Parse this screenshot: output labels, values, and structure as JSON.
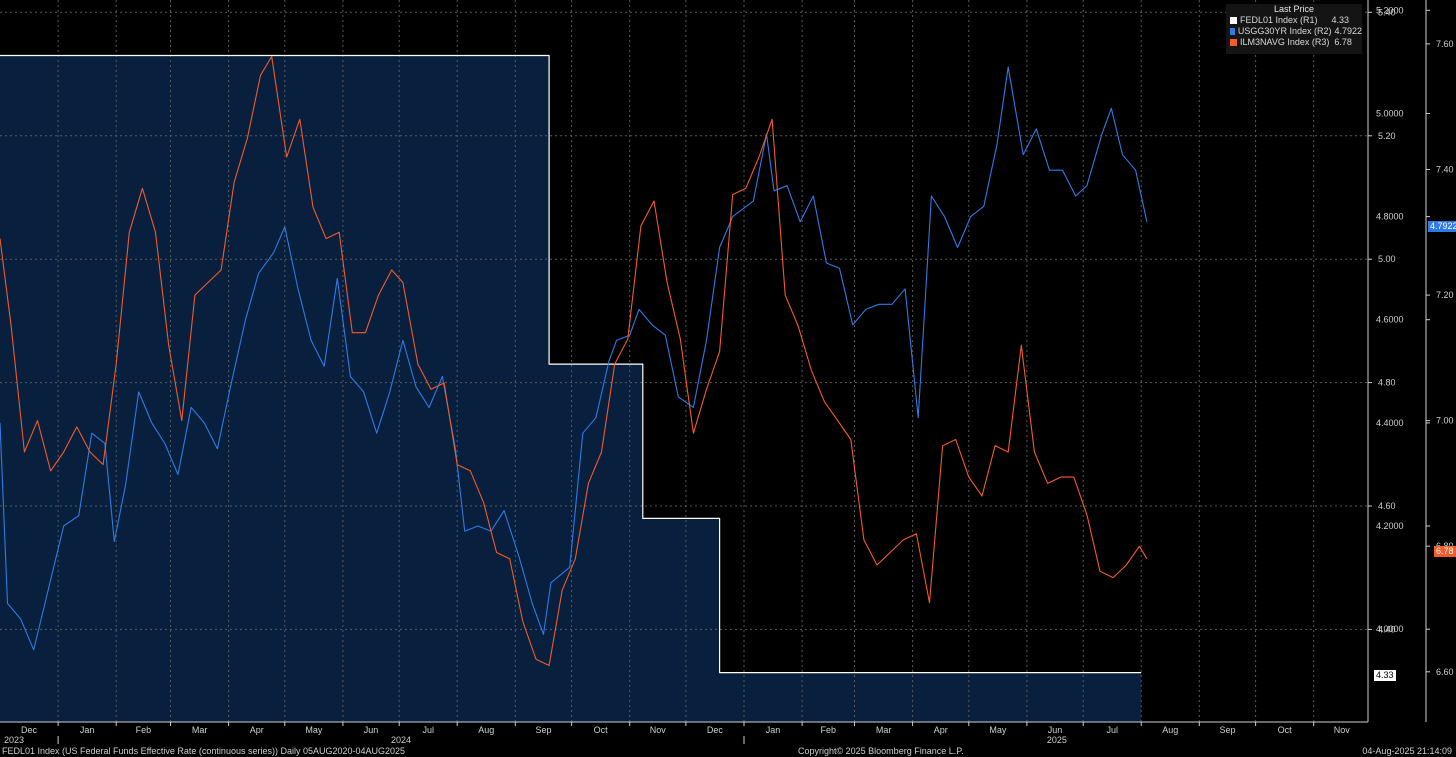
{
  "legend": {
    "header": "Last Price",
    "items": [
      {
        "label": "FEDL01 Index  (R1)",
        "value": "4.33",
        "color": "#ffffff"
      },
      {
        "label": "USGG30YR Index  (R2)",
        "value": "4.7922",
        "color": "#2f7ae5"
      },
      {
        "label": "ILM3NAVG Index  (R3)",
        "value": "6.78",
        "color": "#f25b2a"
      }
    ]
  },
  "footer": {
    "left": "FEDL01 Index (US Federal Funds Effective Rate (continuous series))  Daily 05AUG2020-04AUG2025",
    "center": "Copyright© 2025 Bloomberg Finance L.P.",
    "right": "04-Aug-2025 21:14:09"
  },
  "last_tags": {
    "usgg30yr": "4.7922",
    "ilm3navg": "6.78",
    "fedl01": "4.33"
  },
  "chart_data": {
    "type": "line",
    "x_axis": {
      "months": [
        "Dec",
        "Jan",
        "Feb",
        "Mar",
        "Apr",
        "May",
        "Jun",
        "Jul",
        "Aug",
        "Sep",
        "Oct",
        "Nov",
        "Dec",
        "Jan",
        "Feb",
        "Mar",
        "Apr",
        "May",
        "Jun",
        "Jul",
        "Aug",
        "Sep",
        "Oct",
        "Nov"
      ],
      "years": [
        "2023",
        "2024",
        "2025"
      ],
      "range": [
        "2023-12-01",
        "2025-11-30"
      ]
    },
    "axes": {
      "R1": {
        "ticks": [
          "4.40",
          "4.60",
          "4.80",
          "5.00",
          "5.20",
          "5.40"
        ],
        "range": [
          4.25,
          5.42
        ]
      },
      "R2": {
        "ticks": [
          "4.0000",
          "4.2000",
          "4.4000",
          "4.6000",
          "4.8000",
          "5.0000",
          "5.2000"
        ],
        "range": [
          3.82,
          5.22
        ]
      },
      "R3": {
        "ticks": [
          "6.60",
          "6.80",
          "7.00",
          "7.20",
          "7.40",
          "7.60"
        ],
        "range": [
          6.52,
          7.67
        ]
      }
    },
    "grid": true,
    "series": [
      {
        "name": "FEDL01 Index",
        "axis": "R1",
        "color": "#ffffff",
        "fill": "#08203d",
        "shape": "step",
        "points": [
          [
            "2023-12-01",
            5.33
          ],
          [
            "2024-09-19",
            5.33
          ],
          [
            "2024-09-19",
            4.83
          ],
          [
            "2024-11-08",
            4.83
          ],
          [
            "2024-11-08",
            4.58
          ],
          [
            "2024-12-19",
            4.58
          ],
          [
            "2024-12-19",
            4.33
          ],
          [
            "2025-08-01",
            4.33
          ]
        ]
      },
      {
        "name": "USGG30YR Index",
        "axis": "R2",
        "color": "#2f7ae5",
        "points": [
          [
            "2023-12-01",
            4.4
          ],
          [
            "2023-12-05",
            4.05
          ],
          [
            "2023-12-12",
            4.02
          ],
          [
            "2023-12-19",
            3.96
          ],
          [
            "2023-12-27",
            4.08
          ],
          [
            "2024-01-04",
            4.2
          ],
          [
            "2024-01-12",
            4.22
          ],
          [
            "2024-01-19",
            4.38
          ],
          [
            "2024-01-26",
            4.36
          ],
          [
            "2024-01-31",
            4.17
          ],
          [
            "2024-02-06",
            4.28
          ],
          [
            "2024-02-13",
            4.46
          ],
          [
            "2024-02-20",
            4.4
          ],
          [
            "2024-02-27",
            4.36
          ],
          [
            "2024-03-05",
            4.3
          ],
          [
            "2024-03-12",
            4.43
          ],
          [
            "2024-03-19",
            4.4
          ],
          [
            "2024-03-26",
            4.35
          ],
          [
            "2024-04-02",
            4.47
          ],
          [
            "2024-04-10",
            4.6
          ],
          [
            "2024-04-17",
            4.69
          ],
          [
            "2024-04-25",
            4.73
          ],
          [
            "2024-05-01",
            4.78
          ],
          [
            "2024-05-08",
            4.66
          ],
          [
            "2024-05-15",
            4.56
          ],
          [
            "2024-05-22",
            4.51
          ],
          [
            "2024-05-29",
            4.68
          ],
          [
            "2024-06-05",
            4.49
          ],
          [
            "2024-06-12",
            4.46
          ],
          [
            "2024-06-19",
            4.38
          ],
          [
            "2024-06-26",
            4.46
          ],
          [
            "2024-07-03",
            4.56
          ],
          [
            "2024-07-10",
            4.47
          ],
          [
            "2024-07-17",
            4.43
          ],
          [
            "2024-07-24",
            4.49
          ],
          [
            "2024-07-31",
            4.35
          ],
          [
            "2024-08-05",
            4.19
          ],
          [
            "2024-08-12",
            4.2
          ],
          [
            "2024-08-19",
            4.19
          ],
          [
            "2024-08-26",
            4.23
          ],
          [
            "2024-09-03",
            4.14
          ],
          [
            "2024-09-10",
            4.05
          ],
          [
            "2024-09-16",
            3.99
          ],
          [
            "2024-09-20",
            4.09
          ],
          [
            "2024-09-30",
            4.12
          ],
          [
            "2024-10-07",
            4.38
          ],
          [
            "2024-10-14",
            4.41
          ],
          [
            "2024-10-21",
            4.52
          ],
          [
            "2024-10-25",
            4.56
          ],
          [
            "2024-11-01",
            4.57
          ],
          [
            "2024-11-06",
            4.62
          ],
          [
            "2024-11-13",
            4.59
          ],
          [
            "2024-11-20",
            4.57
          ],
          [
            "2024-11-27",
            4.45
          ],
          [
            "2024-12-05",
            4.43
          ],
          [
            "2024-12-12",
            4.56
          ],
          [
            "2024-12-19",
            4.74
          ],
          [
            "2024-12-26",
            4.8
          ],
          [
            "2025-01-06",
            4.83
          ],
          [
            "2025-01-13",
            4.96
          ],
          [
            "2025-01-17",
            4.85
          ],
          [
            "2025-01-24",
            4.86
          ],
          [
            "2025-01-31",
            4.79
          ],
          [
            "2025-02-07",
            4.84
          ],
          [
            "2025-02-14",
            4.71
          ],
          [
            "2025-02-21",
            4.7
          ],
          [
            "2025-02-28",
            4.59
          ],
          [
            "2025-03-07",
            4.62
          ],
          [
            "2025-03-14",
            4.63
          ],
          [
            "2025-03-21",
            4.63
          ],
          [
            "2025-03-28",
            4.66
          ],
          [
            "2025-04-04",
            4.41
          ],
          [
            "2025-04-11",
            4.84
          ],
          [
            "2025-04-18",
            4.8
          ],
          [
            "2025-04-25",
            4.74
          ],
          [
            "2025-05-02",
            4.8
          ],
          [
            "2025-05-09",
            4.82
          ],
          [
            "2025-05-16",
            4.94
          ],
          [
            "2025-05-22",
            5.09
          ],
          [
            "2025-05-30",
            4.92
          ],
          [
            "2025-06-06",
            4.97
          ],
          [
            "2025-06-13",
            4.89
          ],
          [
            "2025-06-20",
            4.89
          ],
          [
            "2025-06-27",
            4.84
          ],
          [
            "2025-07-03",
            4.86
          ],
          [
            "2025-07-11",
            4.96
          ],
          [
            "2025-07-16",
            5.01
          ],
          [
            "2025-07-22",
            4.92
          ],
          [
            "2025-07-29",
            4.89
          ],
          [
            "2025-08-04",
            4.79
          ]
        ]
      },
      {
        "name": "ILM3NAVG Index",
        "axis": "R3",
        "color": "#f25b2a",
        "points": [
          [
            "2023-12-01",
            7.29
          ],
          [
            "2023-12-07",
            7.15
          ],
          [
            "2023-12-14",
            6.95
          ],
          [
            "2023-12-21",
            7.0
          ],
          [
            "2023-12-28",
            6.92
          ],
          [
            "2024-01-04",
            6.95
          ],
          [
            "2024-01-11",
            6.99
          ],
          [
            "2024-01-18",
            6.95
          ],
          [
            "2024-01-25",
            6.93
          ],
          [
            "2024-02-01",
            7.09
          ],
          [
            "2024-02-08",
            7.3
          ],
          [
            "2024-02-15",
            7.37
          ],
          [
            "2024-02-22",
            7.3
          ],
          [
            "2024-02-29",
            7.12
          ],
          [
            "2024-03-07",
            7.0
          ],
          [
            "2024-03-14",
            7.2
          ],
          [
            "2024-03-21",
            7.22
          ],
          [
            "2024-03-28",
            7.24
          ],
          [
            "2024-04-04",
            7.38
          ],
          [
            "2024-04-11",
            7.45
          ],
          [
            "2024-04-18",
            7.55
          ],
          [
            "2024-04-24",
            7.58
          ],
          [
            "2024-05-02",
            7.42
          ],
          [
            "2024-05-09",
            7.48
          ],
          [
            "2024-05-16",
            7.34
          ],
          [
            "2024-05-23",
            7.29
          ],
          [
            "2024-05-30",
            7.3
          ],
          [
            "2024-06-06",
            7.14
          ],
          [
            "2024-06-13",
            7.14
          ],
          [
            "2024-06-20",
            7.2
          ],
          [
            "2024-06-27",
            7.24
          ],
          [
            "2024-07-03",
            7.22
          ],
          [
            "2024-07-11",
            7.09
          ],
          [
            "2024-07-18",
            7.05
          ],
          [
            "2024-07-25",
            7.06
          ],
          [
            "2024-08-01",
            6.93
          ],
          [
            "2024-08-08",
            6.92
          ],
          [
            "2024-08-15",
            6.87
          ],
          [
            "2024-08-22",
            6.79
          ],
          [
            "2024-08-29",
            6.78
          ],
          [
            "2024-09-05",
            6.68
          ],
          [
            "2024-09-12",
            6.62
          ],
          [
            "2024-09-19",
            6.61
          ],
          [
            "2024-09-26",
            6.73
          ],
          [
            "2024-10-03",
            6.78
          ],
          [
            "2024-10-10",
            6.9
          ],
          [
            "2024-10-17",
            6.95
          ],
          [
            "2024-10-24",
            7.09
          ],
          [
            "2024-10-31",
            7.13
          ],
          [
            "2024-11-07",
            7.31
          ],
          [
            "2024-11-14",
            7.35
          ],
          [
            "2024-11-21",
            7.22
          ],
          [
            "2024-11-28",
            7.13
          ],
          [
            "2024-12-05",
            6.98
          ],
          [
            "2024-12-12",
            7.05
          ],
          [
            "2024-12-19",
            7.11
          ],
          [
            "2024-12-26",
            7.36
          ],
          [
            "2025-01-02",
            7.37
          ],
          [
            "2025-01-09",
            7.42
          ],
          [
            "2025-01-16",
            7.48
          ],
          [
            "2025-01-23",
            7.2
          ],
          [
            "2025-01-30",
            7.15
          ],
          [
            "2025-02-06",
            7.08
          ],
          [
            "2025-02-13",
            7.03
          ],
          [
            "2025-02-20",
            7.0
          ],
          [
            "2025-02-27",
            6.97
          ],
          [
            "2025-03-06",
            6.81
          ],
          [
            "2025-03-13",
            6.77
          ],
          [
            "2025-03-20",
            6.79
          ],
          [
            "2025-03-27",
            6.81
          ],
          [
            "2025-04-03",
            6.82
          ],
          [
            "2025-04-10",
            6.71
          ],
          [
            "2025-04-17",
            6.96
          ],
          [
            "2025-04-24",
            6.97
          ],
          [
            "2025-05-01",
            6.91
          ],
          [
            "2025-05-08",
            6.88
          ],
          [
            "2025-05-15",
            6.96
          ],
          [
            "2025-05-22",
            6.95
          ],
          [
            "2025-05-29",
            7.12
          ],
          [
            "2025-06-05",
            6.95
          ],
          [
            "2025-06-12",
            6.9
          ],
          [
            "2025-06-19",
            6.91
          ],
          [
            "2025-06-26",
            6.91
          ],
          [
            "2025-07-03",
            6.85
          ],
          [
            "2025-07-10",
            6.76
          ],
          [
            "2025-07-17",
            6.75
          ],
          [
            "2025-07-24",
            6.77
          ],
          [
            "2025-07-31",
            6.8
          ],
          [
            "2025-08-04",
            6.78
          ]
        ]
      }
    ]
  }
}
